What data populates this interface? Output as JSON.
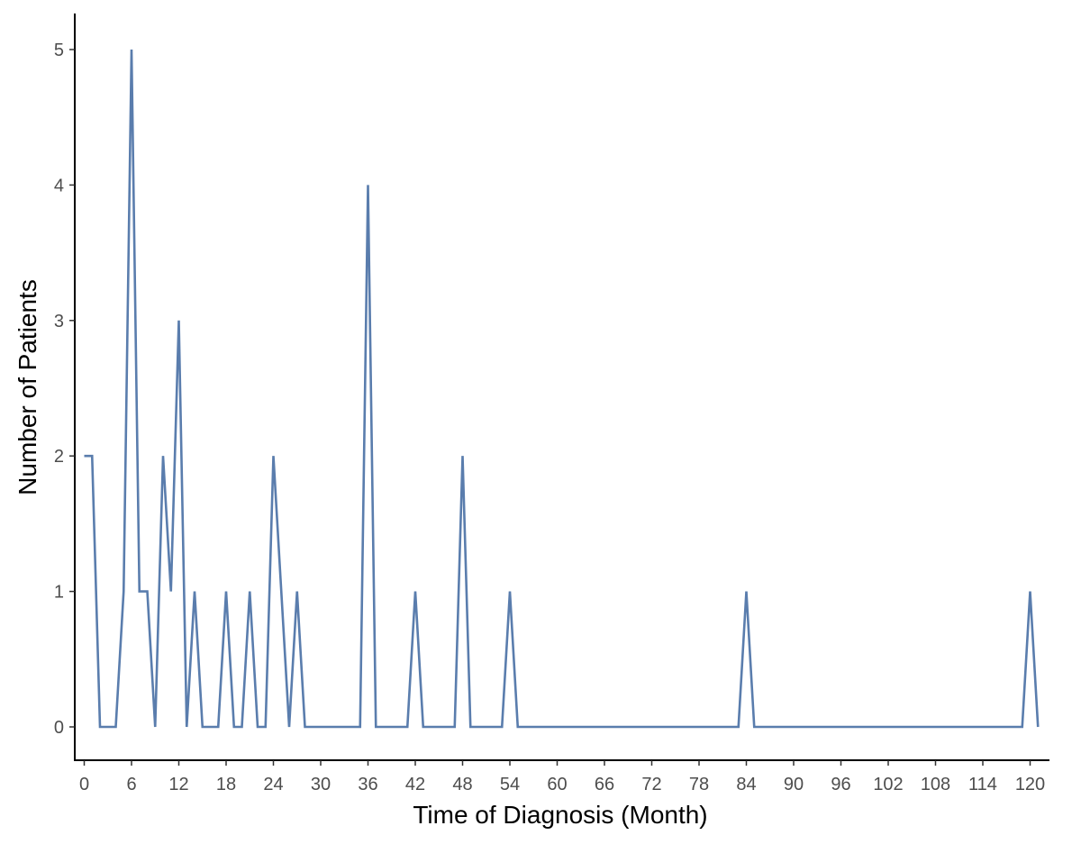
{
  "chart_data": {
    "type": "line",
    "title": "",
    "xlabel": "Time of Diagnosis (Month)",
    "ylabel": "Number of Patients",
    "xlim": [
      0,
      121
    ],
    "ylim": [
      0,
      5
    ],
    "x_ticks": [
      0,
      6,
      12,
      18,
      24,
      30,
      36,
      42,
      48,
      54,
      60,
      66,
      72,
      78,
      84,
      90,
      96,
      102,
      108,
      114,
      120
    ],
    "y_ticks": [
      0,
      1,
      2,
      3,
      4,
      5
    ],
    "grid": false,
    "legend": "none",
    "series": [
      {
        "color": "#5a7dad",
        "x": [
          0,
          1,
          2,
          3,
          4,
          5,
          6,
          7,
          8,
          9,
          10,
          11,
          12,
          13,
          14,
          15,
          16,
          17,
          18,
          19,
          20,
          21,
          22,
          23,
          24,
          25,
          26,
          27,
          28,
          29,
          30,
          31,
          32,
          33,
          34,
          35,
          36,
          37,
          38,
          39,
          40,
          41,
          42,
          43,
          44,
          45,
          46,
          47,
          48,
          49,
          50,
          51,
          52,
          53,
          54,
          55,
          83,
          84,
          85,
          119,
          120,
          121
        ],
        "y": [
          2,
          2,
          0,
          0,
          0,
          1,
          5,
          1,
          1,
          0,
          2,
          1,
          3,
          0,
          1,
          0,
          0,
          0,
          1,
          0,
          0,
          1,
          0,
          0,
          2,
          1,
          0,
          1,
          0,
          0,
          0,
          0,
          0,
          0,
          0,
          0,
          4,
          0,
          0,
          0,
          0,
          0,
          1,
          0,
          0,
          0,
          0,
          0,
          2,
          0,
          0,
          0,
          0,
          0,
          1,
          0,
          0,
          1,
          0,
          0,
          1,
          0
        ]
      }
    ]
  }
}
